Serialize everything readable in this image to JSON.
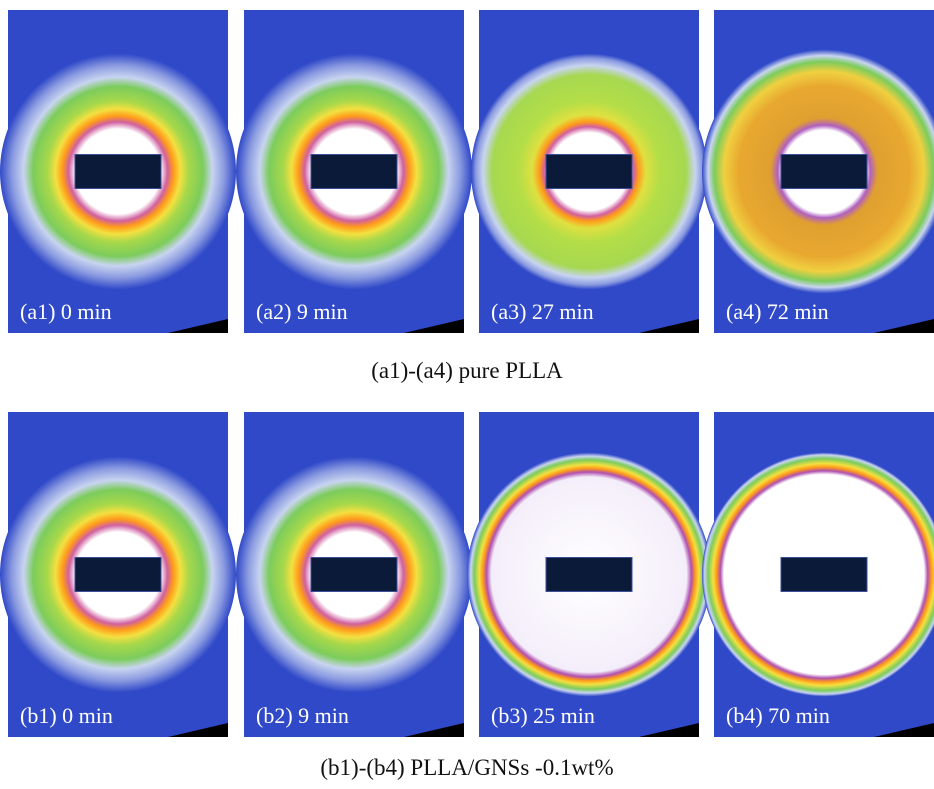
{
  "rows": [
    {
      "panels": [
        {
          "label": "(a1) 0 min"
        },
        {
          "label": "(a2) 9 min"
        },
        {
          "label": "(a3) 27 min"
        },
        {
          "label": "(a4) 72 min"
        }
      ],
      "caption": "(a1)-(a4) pure PLLA"
    },
    {
      "panels": [
        {
          "label": "(b1) 0 min"
        },
        {
          "label": "(b2) 9 min"
        },
        {
          "label": "(b3) 25 min"
        },
        {
          "label": "(b4) 70 min"
        }
      ],
      "caption": "(b1)-(b4) PLLA/GNSs -0.1wt%"
    }
  ]
}
